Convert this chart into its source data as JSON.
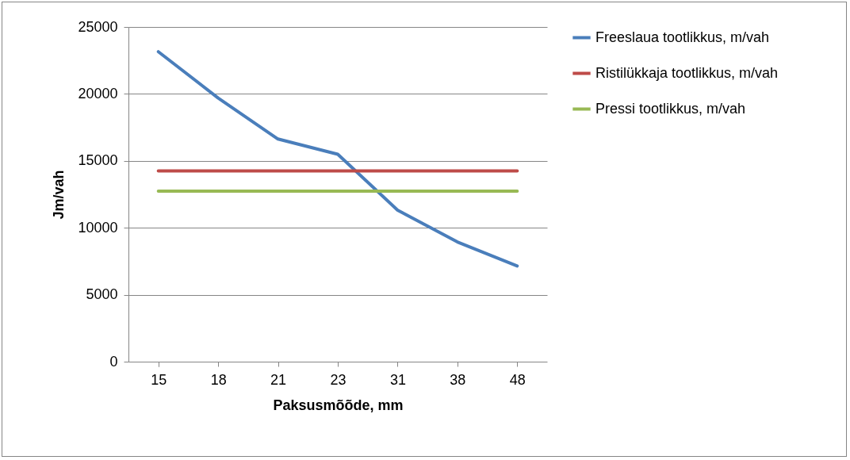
{
  "chart_data": {
    "type": "line",
    "xlabel": "Paksusmõõde, mm",
    "ylabel": "Jm/vah",
    "categories": [
      "15",
      "18",
      "21",
      "23",
      "31",
      "38",
      "48"
    ],
    "series": [
      {
        "name": "Freeslaua tootlikkus, m/vah",
        "color": "#4a7ebb",
        "values": [
          23150,
          19690,
          16630,
          15490,
          11320,
          8940,
          7150
        ]
      },
      {
        "name": "Ristilükkaja tootlikkus, m/vah",
        "color": "#be4b48",
        "values": [
          14250,
          14250,
          14250,
          14250,
          14250,
          14250,
          14250
        ]
      },
      {
        "name": "Pressi tootlikkus, m/vah",
        "color": "#98b954",
        "values": [
          12740,
          12740,
          12740,
          12740,
          12740,
          12740,
          12740
        ]
      }
    ],
    "ylim": [
      0,
      25000
    ],
    "yticks": [
      0,
      5000,
      10000,
      15000,
      20000,
      25000
    ],
    "grid": "y",
    "legend": "right",
    "marker": "none",
    "line_style": "solid"
  }
}
